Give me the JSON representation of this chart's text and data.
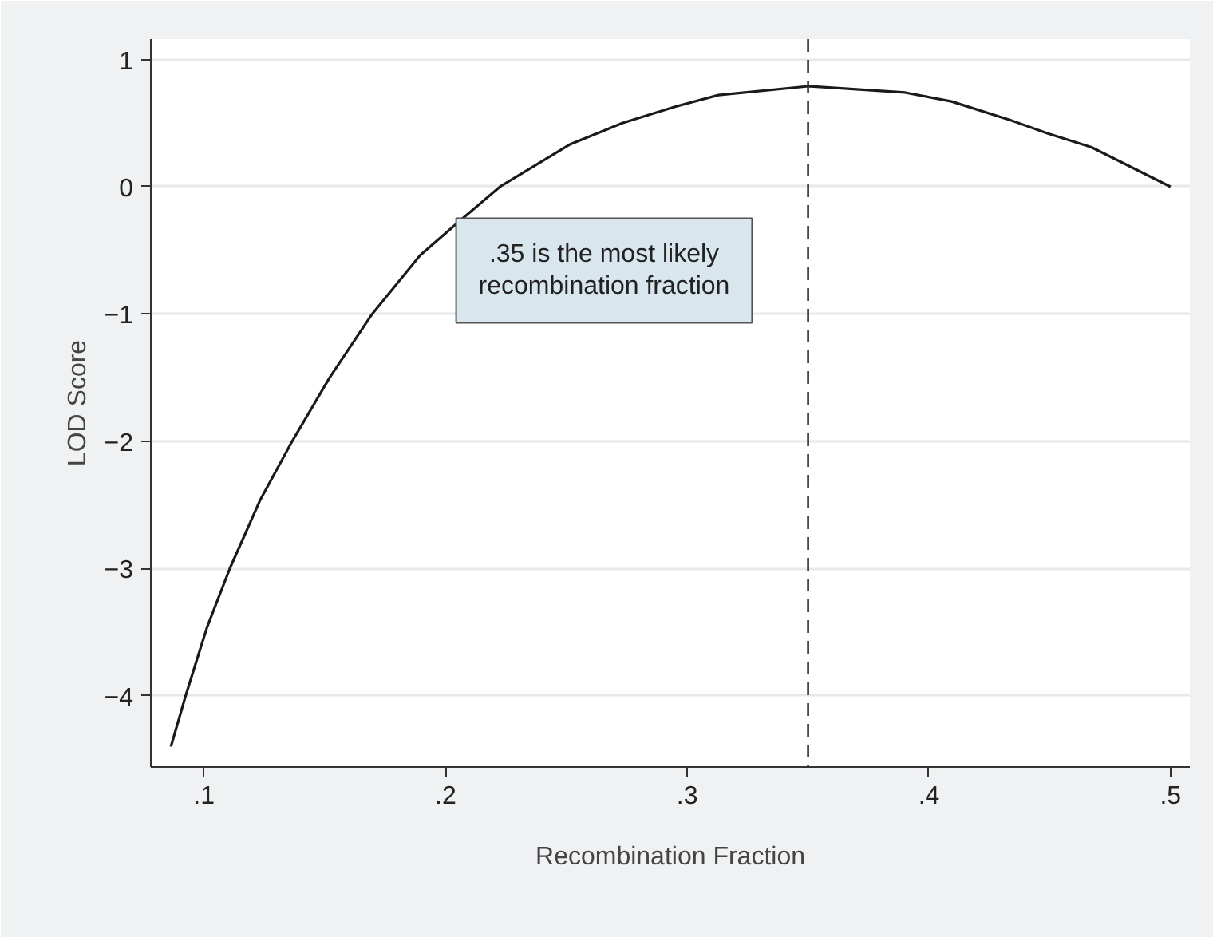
{
  "chart_data": {
    "type": "line",
    "xlabel": "Recombination Fraction",
    "ylabel": "LOD Score",
    "x": [
      0.0863,
      0.0924,
      0.1013,
      0.1107,
      0.1233,
      0.1365,
      0.152,
      0.1696,
      0.1894,
      0.207,
      0.2225,
      0.2512,
      0.2731,
      0.2952,
      0.3129,
      0.3501,
      0.3902,
      0.4094,
      0.4342,
      0.449,
      0.4673,
      0.5
    ],
    "series": [
      {
        "color": "#1a1a1a",
        "values": [
          -4.4,
          -4.0,
          -3.46,
          -3.0,
          -2.46,
          -2.0,
          -1.5,
          -1.0,
          -0.54,
          -0.25,
          0.0,
          0.33,
          0.5,
          0.63,
          0.72,
          0.79,
          0.74,
          0.67,
          0.52,
          0.42,
          0.31,
          0.0
        ]
      }
    ],
    "xlim": [
      0.078,
      0.508
    ],
    "ylim": [
      -4.56,
      1.16
    ],
    "xticks": [
      {
        "value": 0.1,
        "label": ".1"
      },
      {
        "value": 0.2,
        "label": ".2"
      },
      {
        "value": 0.3,
        "label": ".3"
      },
      {
        "value": 0.4,
        "label": ".4"
      },
      {
        "value": 0.5,
        "label": ".5"
      }
    ],
    "yticks": [
      {
        "value": -4,
        "label": "−4"
      },
      {
        "value": -3,
        "label": "−3"
      },
      {
        "value": -2,
        "label": "−2"
      },
      {
        "value": -1,
        "label": "−1"
      },
      0,
      1
    ],
    "ref_lines": [
      {
        "axis": "x",
        "value": 0.35,
        "color": "#333333",
        "line_style": "dashed"
      }
    ],
    "annotations": [
      ".35 is the most likely\nrecombination fraction"
    ],
    "grid": "y",
    "line_style": "solid",
    "marker": "none"
  }
}
